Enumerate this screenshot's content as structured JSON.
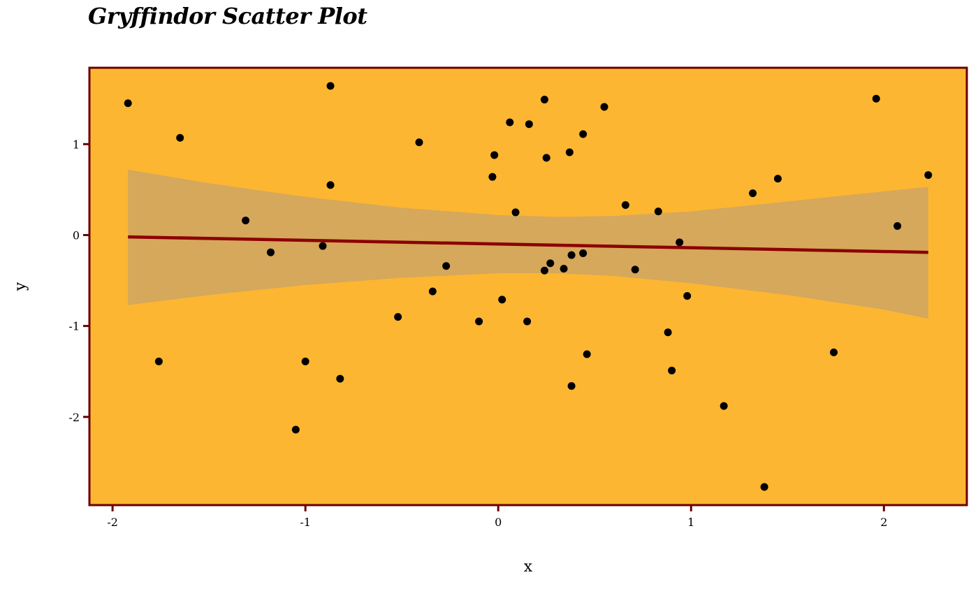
{
  "chart_data": {
    "type": "scatter",
    "title": "Gryffindor Scatter Plot",
    "xlabel": "x",
    "ylabel": "y",
    "xlim": [
      -2.12,
      2.43
    ],
    "ylim": [
      -2.97,
      1.84
    ],
    "x_ticks": [
      -2,
      -1,
      0,
      1,
      2
    ],
    "y_ticks": [
      -2,
      -1,
      0,
      1
    ],
    "grid": false,
    "legend": "none",
    "series": [
      {
        "points": [
          [
            -1.92,
            1.45
          ],
          [
            -1.65,
            1.07
          ],
          [
            -1.76,
            -1.39
          ],
          [
            -1.31,
            0.16
          ],
          [
            -1.18,
            -0.19
          ],
          [
            -1.05,
            -2.14
          ],
          [
            -1.0,
            -1.39
          ],
          [
            -0.91,
            -0.12
          ],
          [
            -0.87,
            1.64
          ],
          [
            -0.87,
            0.55
          ],
          [
            -0.82,
            -1.58
          ],
          [
            -0.52,
            -0.9
          ],
          [
            -0.41,
            1.02
          ],
          [
            -0.34,
            -0.62
          ],
          [
            -0.27,
            -0.34
          ],
          [
            -0.1,
            -0.95
          ],
          [
            -0.03,
            0.64
          ],
          [
            -0.02,
            0.88
          ],
          [
            0.02,
            -0.71
          ],
          [
            0.06,
            1.24
          ],
          [
            0.09,
            0.25
          ],
          [
            0.15,
            -0.95
          ],
          [
            0.16,
            1.22
          ],
          [
            0.24,
            1.49
          ],
          [
            0.24,
            -0.39
          ],
          [
            0.25,
            0.85
          ],
          [
            0.27,
            -0.31
          ],
          [
            0.34,
            -0.37
          ],
          [
            0.37,
            0.91
          ],
          [
            0.38,
            -0.22
          ],
          [
            0.38,
            -1.66
          ],
          [
            0.44,
            -0.2
          ],
          [
            0.44,
            1.11
          ],
          [
            0.46,
            -1.31
          ],
          [
            0.55,
            1.41
          ],
          [
            0.66,
            0.33
          ],
          [
            0.71,
            -0.38
          ],
          [
            0.83,
            0.26
          ],
          [
            0.88,
            -1.07
          ],
          [
            0.9,
            -1.49
          ],
          [
            0.94,
            -0.08
          ],
          [
            0.98,
            -0.67
          ],
          [
            1.17,
            -1.88
          ],
          [
            1.32,
            0.46
          ],
          [
            1.38,
            -2.77
          ],
          [
            1.45,
            0.62
          ],
          [
            1.74,
            -1.29
          ],
          [
            1.96,
            1.5
          ],
          [
            2.07,
            0.1
          ],
          [
            2.23,
            0.66
          ]
        ]
      }
    ],
    "fit": {
      "type": "linear",
      "x_range": [
        -1.92,
        2.23
      ],
      "line": [
        [
          -1.92,
          -0.02
        ],
        [
          2.23,
          -0.19
        ]
      ],
      "band_upper": [
        [
          -1.92,
          0.72
        ],
        [
          -1.5,
          0.57
        ],
        [
          -1.0,
          0.42
        ],
        [
          -0.5,
          0.3
        ],
        [
          0.0,
          0.22
        ],
        [
          0.3,
          0.2
        ],
        [
          0.6,
          0.21
        ],
        [
          1.0,
          0.26
        ],
        [
          1.5,
          0.37
        ],
        [
          2.0,
          0.48
        ],
        [
          2.23,
          0.53
        ]
      ],
      "band_lower": [
        [
          -1.92,
          -0.77
        ],
        [
          -1.5,
          -0.66
        ],
        [
          -1.0,
          -0.55
        ],
        [
          -0.5,
          -0.47
        ],
        [
          0.0,
          -0.42
        ],
        [
          0.3,
          -0.42
        ],
        [
          0.6,
          -0.45
        ],
        [
          1.0,
          -0.53
        ],
        [
          1.5,
          -0.66
        ],
        [
          2.0,
          -0.82
        ],
        [
          2.23,
          -0.92
        ]
      ]
    },
    "colors": {
      "panel_background": "#FDB632",
      "panel_border": "#6B0000",
      "band_fill": "#D5A85B",
      "fit_line": "#8B0000",
      "point": "#000000",
      "axis_tick": "#6B0000"
    }
  }
}
